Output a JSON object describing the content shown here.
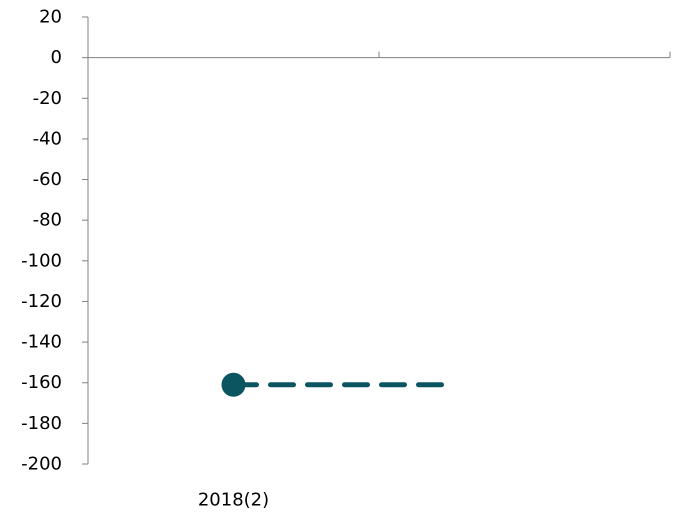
{
  "chart_data": {
    "type": "line",
    "title": "",
    "xlabel": "",
    "ylabel": "",
    "categories": [
      "2018(2)",
      ""
    ],
    "ylim": [
      -200,
      20
    ],
    "yticks": [
      20,
      0,
      -20,
      -40,
      -60,
      -80,
      -100,
      -120,
      -140,
      -160,
      -180,
      -200
    ],
    "grid": false,
    "legend": "none",
    "series": [
      {
        "points": [
          {
            "x": "2018(2)",
            "y": -161
          }
        ],
        "marker": "circle",
        "color": "#0b5560"
      },
      {
        "points": [
          {
            "x": "2018(2)",
            "y": -161
          },
          {
            "x": "",
            "y": -161
          }
        ],
        "style": "dashed",
        "color": "#0b5560"
      }
    ]
  }
}
